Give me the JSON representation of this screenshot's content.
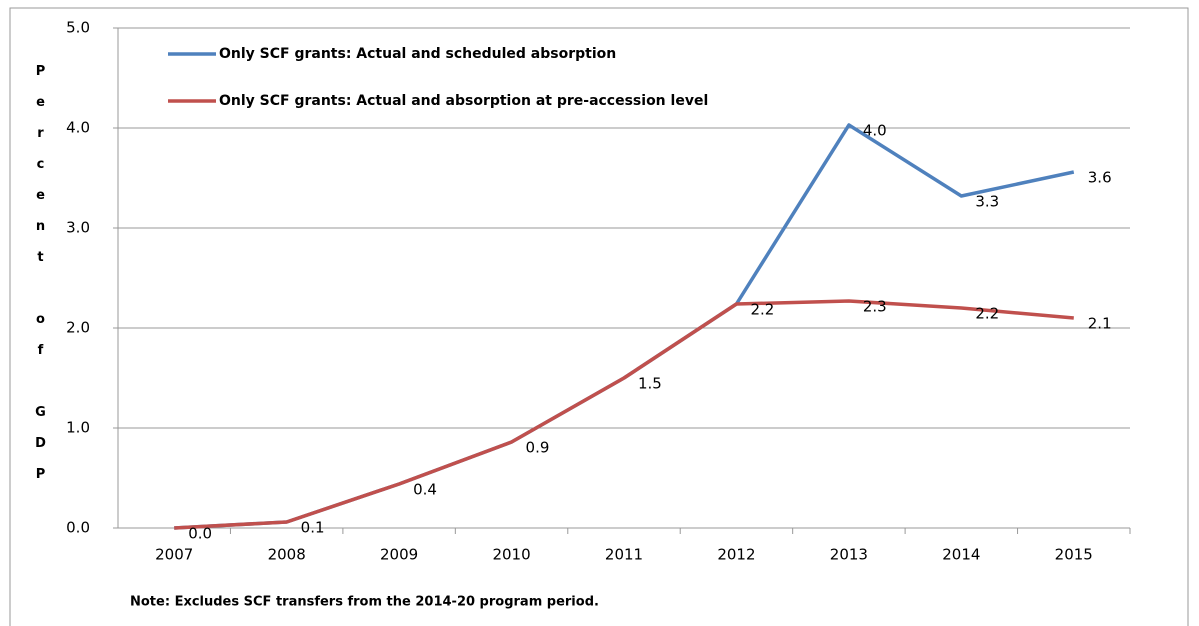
{
  "chart_data": {
    "type": "line",
    "y_label": "Percent of GDP",
    "note": "Note: Excludes SCF transfers from the 2014-20 program period.",
    "categories": [
      "2007",
      "2008",
      "2009",
      "2010",
      "2011",
      "2012",
      "2013",
      "2014",
      "2015"
    ],
    "series": [
      {
        "name": "Only SCF grants: Actual and scheduled absorption",
        "color": "#4f81bd",
        "values": [
          0.0,
          0.06,
          0.44,
          0.86,
          1.5,
          2.24,
          4.03,
          3.32,
          3.56
        ],
        "value_labels": [
          null,
          null,
          null,
          null,
          null,
          null,
          "4.0",
          "3.3",
          "3.6"
        ]
      },
      {
        "name": "Only SCF grants: Actual and absorption at pre-accession  level",
        "color": "#c0504d",
        "values": [
          0.0,
          0.06,
          0.44,
          0.86,
          1.5,
          2.24,
          2.27,
          2.2,
          2.1
        ],
        "value_labels": [
          "0.0",
          "0.1",
          "0.4",
          "0.9",
          "1.5",
          "2.2",
          "2.3",
          "2.2",
          "2.1"
        ]
      }
    ],
    "ylim": [
      0,
      5
    ],
    "yticks": [
      {
        "value": 0,
        "label": "0.0"
      },
      {
        "value": 1,
        "label": "1.0"
      },
      {
        "value": 2,
        "label": "2.0"
      },
      {
        "value": 3,
        "label": "3.0"
      },
      {
        "value": 4,
        "label": "4.0"
      },
      {
        "value": 5,
        "label": "5.0"
      }
    ],
    "grid": true,
    "legend": "top-left"
  }
}
